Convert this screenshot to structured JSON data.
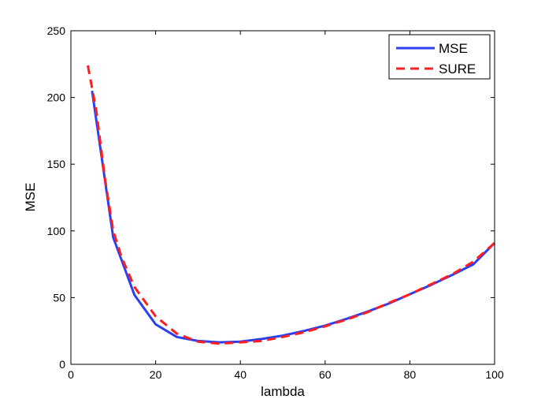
{
  "chart_data": {
    "type": "line",
    "title": "",
    "xlabel": "lambda",
    "ylabel": "MSE",
    "xlim": [
      0,
      100
    ],
    "ylim": [
      0,
      250
    ],
    "x_ticks": [
      0,
      20,
      40,
      60,
      80,
      100
    ],
    "y_ticks": [
      0,
      50,
      100,
      150,
      200,
      250
    ],
    "legend_position": "top-right",
    "series": [
      {
        "name": "MSE",
        "color": "#2b3ff0",
        "style": "solid",
        "x": [
          5,
          10,
          15,
          20,
          25,
          30,
          35,
          40,
          45,
          50,
          55,
          60,
          65,
          70,
          75,
          80,
          85,
          90,
          95,
          100
        ],
        "y": [
          205,
          95,
          52,
          30,
          20.5,
          17.5,
          16.5,
          17,
          19,
          21.5,
          25,
          29,
          34,
          39.5,
          45.5,
          52.5,
          59.5,
          67,
          75,
          91
        ]
      },
      {
        "name": "SURE",
        "color": "#ff1e1e",
        "style": "dashed",
        "x": [
          4,
          6,
          8,
          10,
          12,
          15,
          20,
          25,
          30,
          35,
          40,
          45,
          50,
          55,
          60,
          65,
          70,
          75,
          80,
          85,
          90,
          95,
          100
        ],
        "y": [
          224,
          190,
          140,
          100,
          80,
          58,
          36,
          23,
          17,
          15.5,
          16.5,
          17.5,
          20.5,
          24,
          28.5,
          33.5,
          39,
          46,
          52.5,
          60,
          67.5,
          77,
          91
        ]
      }
    ]
  }
}
